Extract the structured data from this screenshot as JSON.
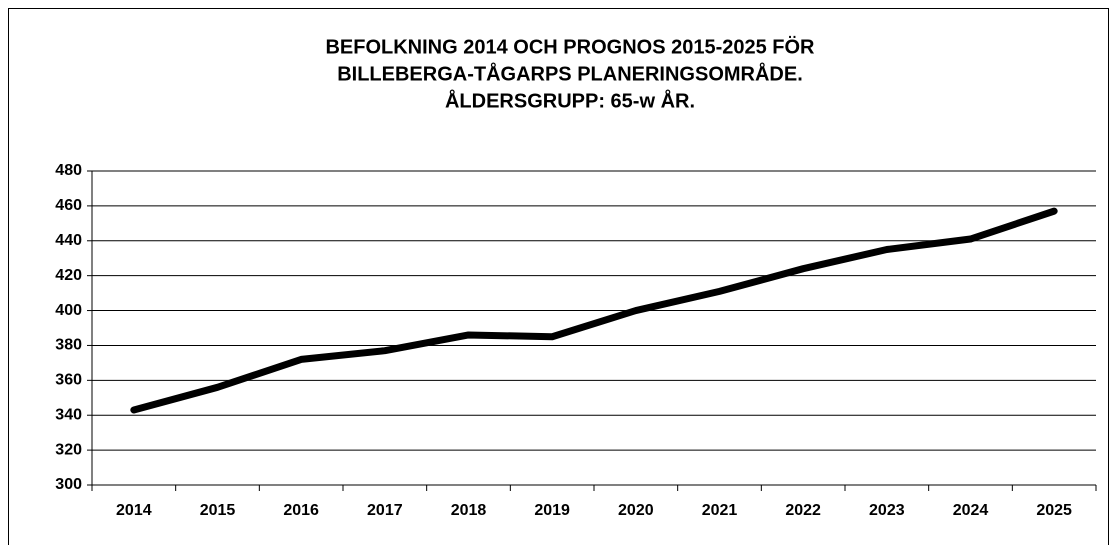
{
  "chart_data": {
    "type": "line",
    "title": [
      "BEFOLKNING 2014 OCH PROGNOS 2015-2025 FÖR",
      "BILLEBERGA-TÅGARPS PLANERINGSOMRÅDE.",
      "ÅLDERSGRUPP: 65-w ÅR."
    ],
    "categories": [
      "2014",
      "2015",
      "2016",
      "2017",
      "2018",
      "2019",
      "2020",
      "2021",
      "2022",
      "2023",
      "2024",
      "2025"
    ],
    "values": [
      343,
      356,
      372,
      377,
      386,
      385,
      400,
      411,
      424,
      435,
      441,
      457
    ],
    "color": "#000000",
    "ylim": [
      300,
      480
    ],
    "yticks": [
      300,
      320,
      340,
      360,
      380,
      400,
      420,
      440,
      460,
      480
    ],
    "grid": true
  }
}
